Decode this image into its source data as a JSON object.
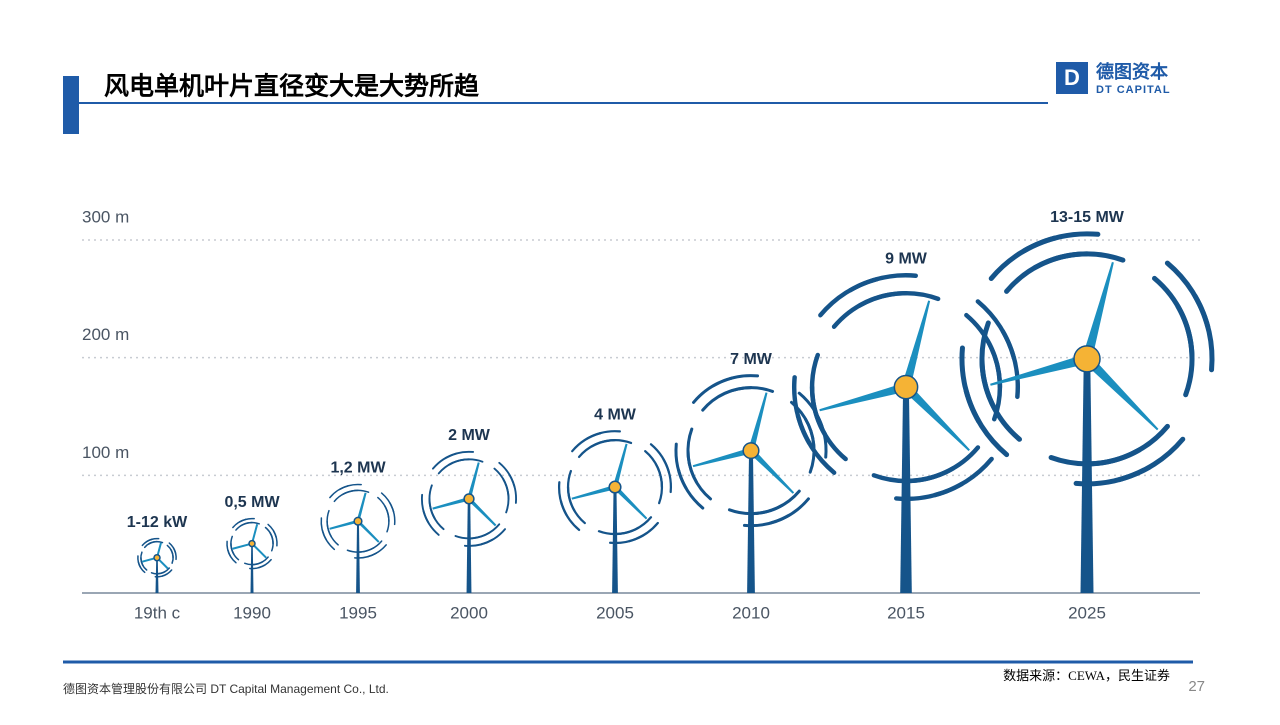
{
  "header": {
    "title": "风电单机叶片直径变大是大势所趋",
    "logo_cn": "德图资本",
    "logo_en": "DT CAPITAL"
  },
  "chart_data": {
    "type": "turbine",
    "categories": [
      "19th c",
      "1990",
      "1995",
      "2000",
      "2005",
      "2010",
      "2015",
      "2025"
    ],
    "labels": [
      "1-12 kW",
      "0,5 MW",
      "1,2 MW",
      "2 MW",
      "4 MW",
      "7 MW",
      "9 MW",
      "13-15 MW"
    ],
    "values": [
      30,
      42,
      61,
      80,
      90,
      121,
      175,
      199
    ],
    "rotor_radius": [
      13,
      17,
      25,
      32,
      38,
      51,
      76,
      85
    ],
    "ylim": [
      0,
      300
    ],
    "yticks": [
      {
        "value": 100,
        "label": "100 m"
      },
      {
        "value": 200,
        "label": "200 m"
      },
      {
        "value": 300,
        "label": "300 m"
      }
    ],
    "grid": true,
    "tower_color": "#15548a",
    "blade_color": "#1b8fbf",
    "hub_color": "#f5b335"
  },
  "source": "数据来源：CEWA，民生证券",
  "footer": {
    "company": "德图资本管理股份有限公司 DT Capital Management Co., Ltd.",
    "page": "27"
  }
}
